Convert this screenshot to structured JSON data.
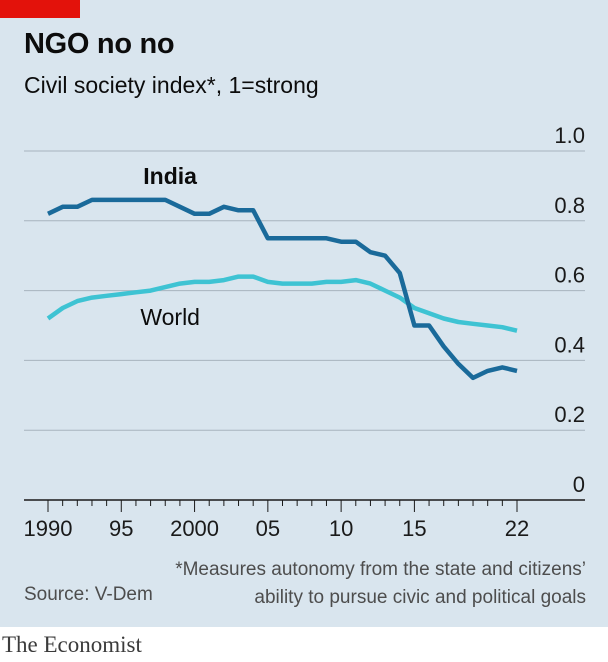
{
  "header": {
    "title": "NGO no no",
    "subtitle": "Civil society index*, 1=strong"
  },
  "footer": {
    "footnote_line1": "*Measures autonomy from the state and citizens’",
    "footnote_line2": "ability to pursue civic and political goals",
    "source": "Source: V-Dem",
    "brand": "The Economist"
  },
  "colors": {
    "india": "#1a6a9a",
    "world": "#3ec3d3",
    "background": "#d9e5ee",
    "accent": "#e3120b"
  },
  "chart_data": {
    "type": "line",
    "title": "NGO no no",
    "ylabel": "Civil society index*, 1=strong",
    "xlim": [
      1990,
      2022
    ],
    "ylim": [
      0,
      1
    ],
    "y_ticks": [
      {
        "value": 0,
        "label": "0"
      },
      {
        "value": 0.2,
        "label": "0.2"
      },
      {
        "value": 0.4,
        "label": "0.4"
      },
      {
        "value": 0.6,
        "label": "0.6"
      },
      {
        "value": 0.8,
        "label": "0.8"
      },
      {
        "value": 1.0,
        "label": "1.0"
      }
    ],
    "x_ticks": [
      {
        "value": 1990,
        "label": "1990"
      },
      {
        "value": 1995,
        "label": "95"
      },
      {
        "value": 2000,
        "label": "2000"
      },
      {
        "value": 2005,
        "label": "05"
      },
      {
        "value": 2010,
        "label": "10"
      },
      {
        "value": 2015,
        "label": "15"
      },
      {
        "value": 2022,
        "label": "22"
      }
    ],
    "x": [
      1990,
      1991,
      1992,
      1993,
      1994,
      1995,
      1996,
      1997,
      1998,
      1999,
      2000,
      2001,
      2002,
      2003,
      2004,
      2005,
      2006,
      2007,
      2008,
      2009,
      2010,
      2011,
      2012,
      2013,
      2014,
      2015,
      2016,
      2017,
      2018,
      2019,
      2020,
      2021,
      2022
    ],
    "series": [
      {
        "name": "India",
        "values": [
          0.82,
          0.84,
          0.84,
          0.86,
          0.86,
          0.86,
          0.86,
          0.86,
          0.86,
          0.84,
          0.82,
          0.82,
          0.84,
          0.83,
          0.83,
          0.75,
          0.75,
          0.75,
          0.75,
          0.75,
          0.74,
          0.74,
          0.71,
          0.7,
          0.65,
          0.5,
          0.5,
          0.44,
          0.39,
          0.35,
          0.37,
          0.38,
          0.37
        ]
      },
      {
        "name": "World",
        "values": [
          0.52,
          0.55,
          0.57,
          0.58,
          0.585,
          0.59,
          0.595,
          0.6,
          0.61,
          0.62,
          0.625,
          0.625,
          0.63,
          0.64,
          0.64,
          0.625,
          0.62,
          0.62,
          0.62,
          0.625,
          0.625,
          0.63,
          0.62,
          0.6,
          0.58,
          0.55,
          0.535,
          0.52,
          0.51,
          0.505,
          0.5,
          0.495,
          0.485
        ]
      }
    ]
  }
}
